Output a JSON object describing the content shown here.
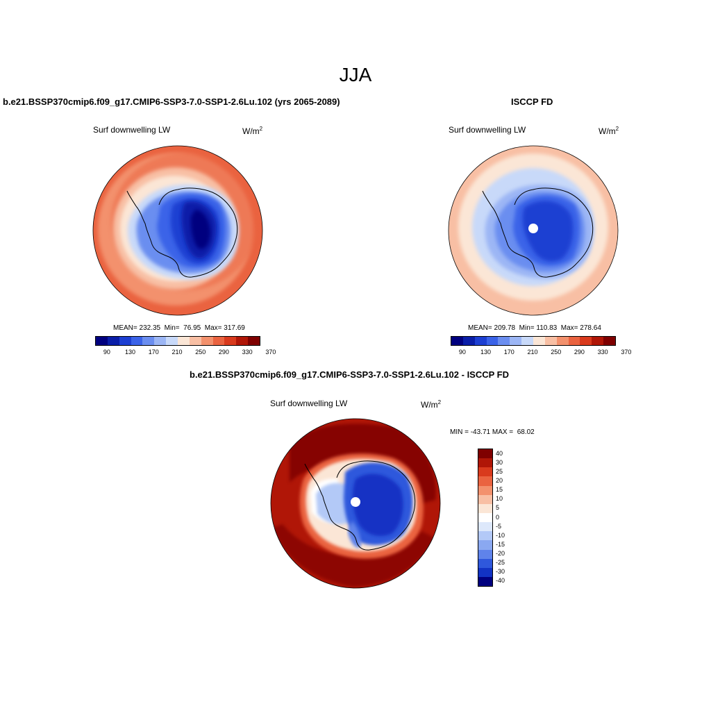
{
  "title": "JJA",
  "panels": [
    {
      "title": "b.e21.BSSP370cmip6.f09_g17.CMIP6-SSP3-7.0-SSP1-2.6Lu.102 (yrs 2065-2089)",
      "variable": "Surf downwelling LW",
      "units": "W/m",
      "units_exp": "2",
      "stats": "MEAN= 232.35  Min=  76.95  Max= 317.69"
    },
    {
      "title": "ISCCP FD",
      "variable": "Surf downwelling LW",
      "units": "W/m",
      "units_exp": "2",
      "stats": "MEAN= 209.78  Min= 110.83  Max= 278.64"
    },
    {
      "title": "b.e21.BSSP370cmip6.f09_g17.CMIP6-SSP3-7.0-SSP1-2.6Lu.102 - ISCCP FD",
      "variable": "Surf downwelling LW",
      "units": "W/m",
      "units_exp": "2",
      "stats": "MIN = -43.71 MAX =  68.02"
    }
  ],
  "abs_colorbar": {
    "labels": [
      "90",
      "130",
      "170",
      "210",
      "250",
      "290",
      "330",
      "370"
    ],
    "colors": [
      "#00007f",
      "#0a1ea8",
      "#1d3fd2",
      "#3b63e8",
      "#6b8ef0",
      "#9cb6f5",
      "#c8d9f9",
      "#fbe6d6",
      "#f8bfa4",
      "#f3916d",
      "#ea6340",
      "#d93a1d",
      "#b01607",
      "#7f0000"
    ]
  },
  "diff_colorbar": {
    "labels": [
      "40",
      "30",
      "25",
      "20",
      "15",
      "10",
      "5",
      "0",
      "-5",
      "-10",
      "-15",
      "-20",
      "-25",
      "-30",
      "-40"
    ],
    "colors": [
      "#7f0000",
      "#b01607",
      "#d93a1d",
      "#ea6340",
      "#f3916d",
      "#f8bfa4",
      "#fbe6d6",
      "#ffffff",
      "#dde8fb",
      "#b3c9f7",
      "#8aa8f1",
      "#5f83ea",
      "#2f58dc",
      "#1233c4",
      "#00007f"
    ]
  }
}
